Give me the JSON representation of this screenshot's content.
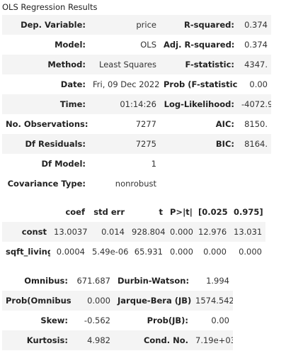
{
  "caption": "OLS Regression Results",
  "summary_rows": [
    {
      "l1": "Dep. Variable:",
      "v1": "price",
      "l2": "R-squared:",
      "v2": "0.374"
    },
    {
      "l1": "Model:",
      "v1": "OLS",
      "l2": "Adj. R-squared:",
      "v2": "0.374"
    },
    {
      "l1": "Method:",
      "v1": "Least Squares",
      "l2": "F-statistic:",
      "v2": "4347."
    },
    {
      "l1": "Date:",
      "v1": "Fri, 09 Dec 2022",
      "l2": "Prob (F-statistic):",
      "v2": "0.00"
    },
    {
      "l1": "Time:",
      "v1": "01:14:26",
      "l2": "Log-Likelihood:",
      "v2": "-4072.9"
    },
    {
      "l1": "No. Observations:",
      "v1": "7277",
      "l2": "AIC:",
      "v2": "8150."
    },
    {
      "l1": "Df Residuals:",
      "v1": "7275",
      "l2": "BIC:",
      "v2": "8164."
    },
    {
      "l1": "Df Model:",
      "v1": "1",
      "l2": "",
      "v2": ""
    },
    {
      "l1": "Covariance Type:",
      "v1": "nonrobust",
      "l2": "",
      "v2": ""
    }
  ],
  "coef_headers": [
    "",
    "coef",
    "std err",
    "t",
    "P>|t|",
    "[0.025",
    "0.975]"
  ],
  "coef_rows": [
    [
      "const",
      "13.0037",
      "0.014",
      "928.804",
      "0.000",
      "12.976",
      "13.031"
    ],
    [
      "sqft_living",
      "0.0004",
      "5.49e-06",
      "65.931",
      "0.000",
      "0.000",
      "0.000"
    ]
  ],
  "diag_rows": [
    {
      "l1": "Omnibus:",
      "v1": "671.687",
      "l2": "Durbin-Watson:",
      "v2": "1.994"
    },
    {
      "l1": "Prob(Omnibus):",
      "v1": "0.000",
      "l2": "Jarque-Bera (JB):",
      "v2": "1574.542"
    },
    {
      "l1": "Skew:",
      "v1": "-0.562",
      "l2": "Prob(JB):",
      "v2": "0.00"
    },
    {
      "l1": "Kurtosis:",
      "v1": "4.982",
      "l2": "Cond. No.",
      "v2": "7.19e+03"
    }
  ]
}
